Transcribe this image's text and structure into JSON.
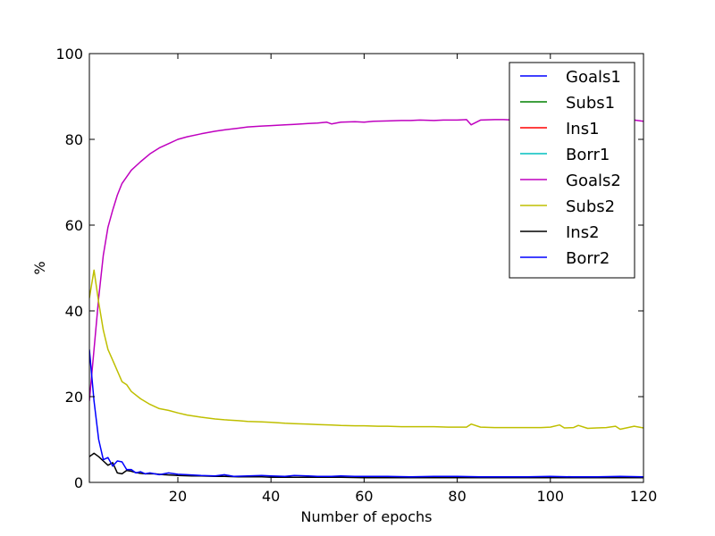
{
  "chart_data": {
    "type": "line",
    "title": "",
    "xlabel": "Number of epochs",
    "ylabel": "%",
    "xlim": [
      1,
      120
    ],
    "ylim": [
      0,
      100
    ],
    "xticks": [
      20,
      40,
      60,
      80,
      100,
      120
    ],
    "yticks": [
      0,
      20,
      40,
      60,
      80,
      100
    ],
    "grid": false,
    "legend_position": "top-right",
    "series": [
      {
        "name": "Goals1",
        "color": "#0000ff",
        "x": [
          1,
          120
        ],
        "y": [
          null,
          null
        ]
      },
      {
        "name": "Subs1",
        "color": "#008000",
        "x": [
          1,
          120
        ],
        "y": [
          null,
          null
        ]
      },
      {
        "name": "Ins1",
        "color": "#ff0000",
        "x": [
          1,
          120
        ],
        "y": [
          null,
          null
        ]
      },
      {
        "name": "Borr1",
        "color": "#00bfbf",
        "x": [
          1,
          120
        ],
        "y": [
          null,
          null
        ]
      },
      {
        "name": "Goals2",
        "color": "#bf00bf",
        "x": [
          1,
          2,
          3,
          4,
          5,
          6,
          7,
          8,
          10,
          12,
          14,
          16,
          18,
          20,
          22,
          25,
          28,
          30,
          33,
          35,
          38,
          40,
          43,
          45,
          48,
          50,
          52,
          53,
          55,
          58,
          60,
          62,
          65,
          68,
          70,
          72,
          75,
          77,
          80,
          82,
          83,
          85,
          88,
          90,
          92,
          95,
          98,
          100,
          103,
          105,
          108,
          110,
          112,
          115,
          118,
          120
        ],
        "y": [
          19,
          31,
          43,
          53,
          59.5,
          63.5,
          67,
          69.7,
          72.8,
          74.8,
          76.6,
          78,
          79,
          80,
          80.6,
          81.3,
          81.9,
          82.2,
          82.6,
          82.9,
          83.1,
          83.2,
          83.4,
          83.5,
          83.7,
          83.8,
          84,
          83.6,
          84,
          84.1,
          84,
          84.2,
          84.3,
          84.4,
          84.4,
          84.5,
          84.4,
          84.5,
          84.5,
          84.6,
          83.4,
          84.5,
          84.6,
          84.6,
          84.5,
          84.6,
          84.5,
          84.6,
          84.5,
          84.6,
          84.5,
          84.6,
          84.4,
          84.6,
          84.5,
          84.2
        ]
      },
      {
        "name": "Subs2",
        "color": "#bfbf00",
        "x": [
          1,
          2,
          3,
          4,
          5,
          6,
          8,
          9,
          10,
          12,
          14,
          16,
          18,
          20,
          22,
          25,
          28,
          30,
          33,
          35,
          38,
          40,
          43,
          45,
          48,
          50,
          53,
          55,
          58,
          60,
          63,
          65,
          68,
          70,
          73,
          75,
          78,
          80,
          82,
          83,
          85,
          88,
          90,
          93,
          95,
          98,
          100,
          102,
          103,
          105,
          106,
          108,
          110,
          112,
          114,
          115,
          118,
          120
        ],
        "y": [
          43,
          49.5,
          42,
          35.5,
          31,
          28.5,
          23.5,
          22.8,
          21.2,
          19.5,
          18.2,
          17.2,
          16.8,
          16.2,
          15.7,
          15.2,
          14.8,
          14.6,
          14.4,
          14.2,
          14.1,
          14,
          13.8,
          13.7,
          13.6,
          13.5,
          13.4,
          13.3,
          13.2,
          13.2,
          13.1,
          13.1,
          13,
          13,
          13,
          13,
          12.9,
          12.9,
          12.9,
          13.6,
          12.9,
          12.8,
          12.8,
          12.8,
          12.8,
          12.8,
          12.9,
          13.4,
          12.7,
          12.8,
          13.3,
          12.6,
          12.7,
          12.8,
          13.1,
          12.4,
          13.1,
          12.7
        ]
      },
      {
        "name": "Ins2",
        "color": "#000000",
        "x": [
          1,
          2,
          3,
          4,
          5,
          6,
          7,
          8,
          9,
          10,
          11,
          12,
          13,
          15,
          17,
          20,
          23,
          25,
          28,
          30,
          33,
          35,
          38,
          40,
          45,
          50,
          55,
          60,
          65,
          70,
          75,
          80,
          85,
          90,
          95,
          100,
          105,
          110,
          115,
          120
        ],
        "y": [
          6,
          6.8,
          6,
          5,
          4,
          4.6,
          2.2,
          2,
          2.8,
          2.6,
          2.3,
          2.1,
          2,
          2,
          1.8,
          1.6,
          1.5,
          1.5,
          1.4,
          1.4,
          1.3,
          1.3,
          1.3,
          1.2,
          1.2,
          1.2,
          1.2,
          1.1,
          1.1,
          1.1,
          1.1,
          1.1,
          1.1,
          1.1,
          1.1,
          1.1,
          1.1,
          1.1,
          1.1,
          1.1
        ]
      },
      {
        "name": "Borr2",
        "color": "#0000ff",
        "x": [
          1,
          2,
          3,
          4,
          5,
          6,
          7,
          8,
          9,
          10,
          11,
          12,
          13,
          14,
          16,
          18,
          20,
          22,
          25,
          28,
          30,
          32,
          35,
          38,
          40,
          43,
          45,
          48,
          50,
          53,
          55,
          58,
          60,
          65,
          70,
          75,
          80,
          85,
          90,
          95,
          100,
          105,
          110,
          115,
          120
        ],
        "y": [
          31,
          19,
          10,
          5.3,
          5.8,
          3.8,
          5,
          4.8,
          3,
          3,
          2.2,
          2.5,
          2,
          2.2,
          1.8,
          2.2,
          1.9,
          1.8,
          1.6,
          1.5,
          1.8,
          1.4,
          1.5,
          1.6,
          1.5,
          1.4,
          1.6,
          1.5,
          1.4,
          1.4,
          1.5,
          1.4,
          1.4,
          1.4,
          1.3,
          1.4,
          1.4,
          1.3,
          1.3,
          1.3,
          1.4,
          1.3,
          1.3,
          1.4,
          1.3
        ]
      }
    ]
  }
}
